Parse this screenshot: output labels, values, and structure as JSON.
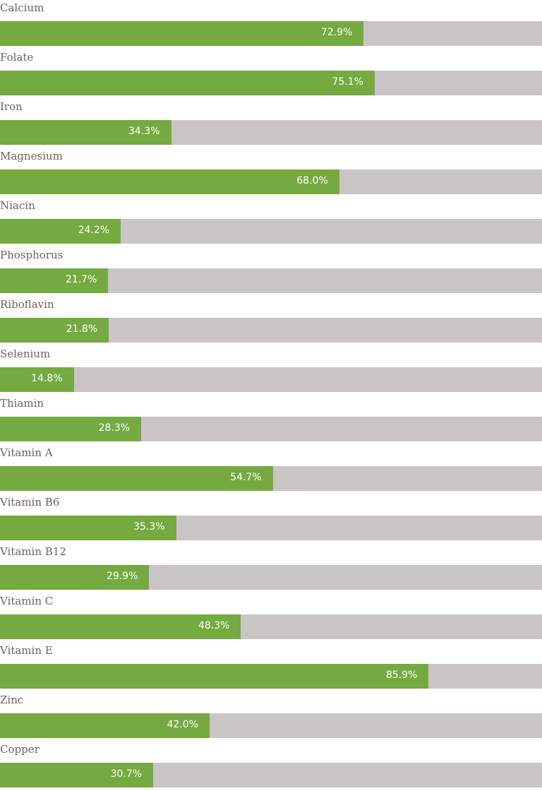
{
  "chart_data": {
    "type": "bar",
    "orientation": "horizontal",
    "unit": "%",
    "xlim": [
      0,
      100
    ],
    "colors": {
      "fill": "#74aa40",
      "track": "#c9c5c4",
      "label": "#6e6262"
    },
    "categories": [
      "Calcium",
      "Folate",
      "Iron",
      "Magnesium",
      "Niacin",
      "Phosphorus",
      "Riboflavin",
      "Selenium",
      "Thiamin",
      "Vitamin A",
      "Vitamin B6",
      "Vitamin B12",
      "Vitamin C",
      "Vitamin E",
      "Zinc",
      "Copper"
    ],
    "values": [
      72.9,
      75.1,
      34.3,
      68.0,
      24.2,
      21.7,
      21.8,
      14.8,
      28.3,
      54.7,
      35.3,
      29.9,
      48.3,
      85.9,
      42.0,
      30.7
    ],
    "value_labels": [
      "72.9%",
      "75.1%",
      "34.3%",
      "68.0%",
      "24.2%",
      "21.7%",
      "21.8%",
      "14.8%",
      "28.3%",
      "54.7%",
      "35.3%",
      "29.9%",
      "48.3%",
      "85.9%",
      "42.0%",
      "30.7%"
    ]
  }
}
